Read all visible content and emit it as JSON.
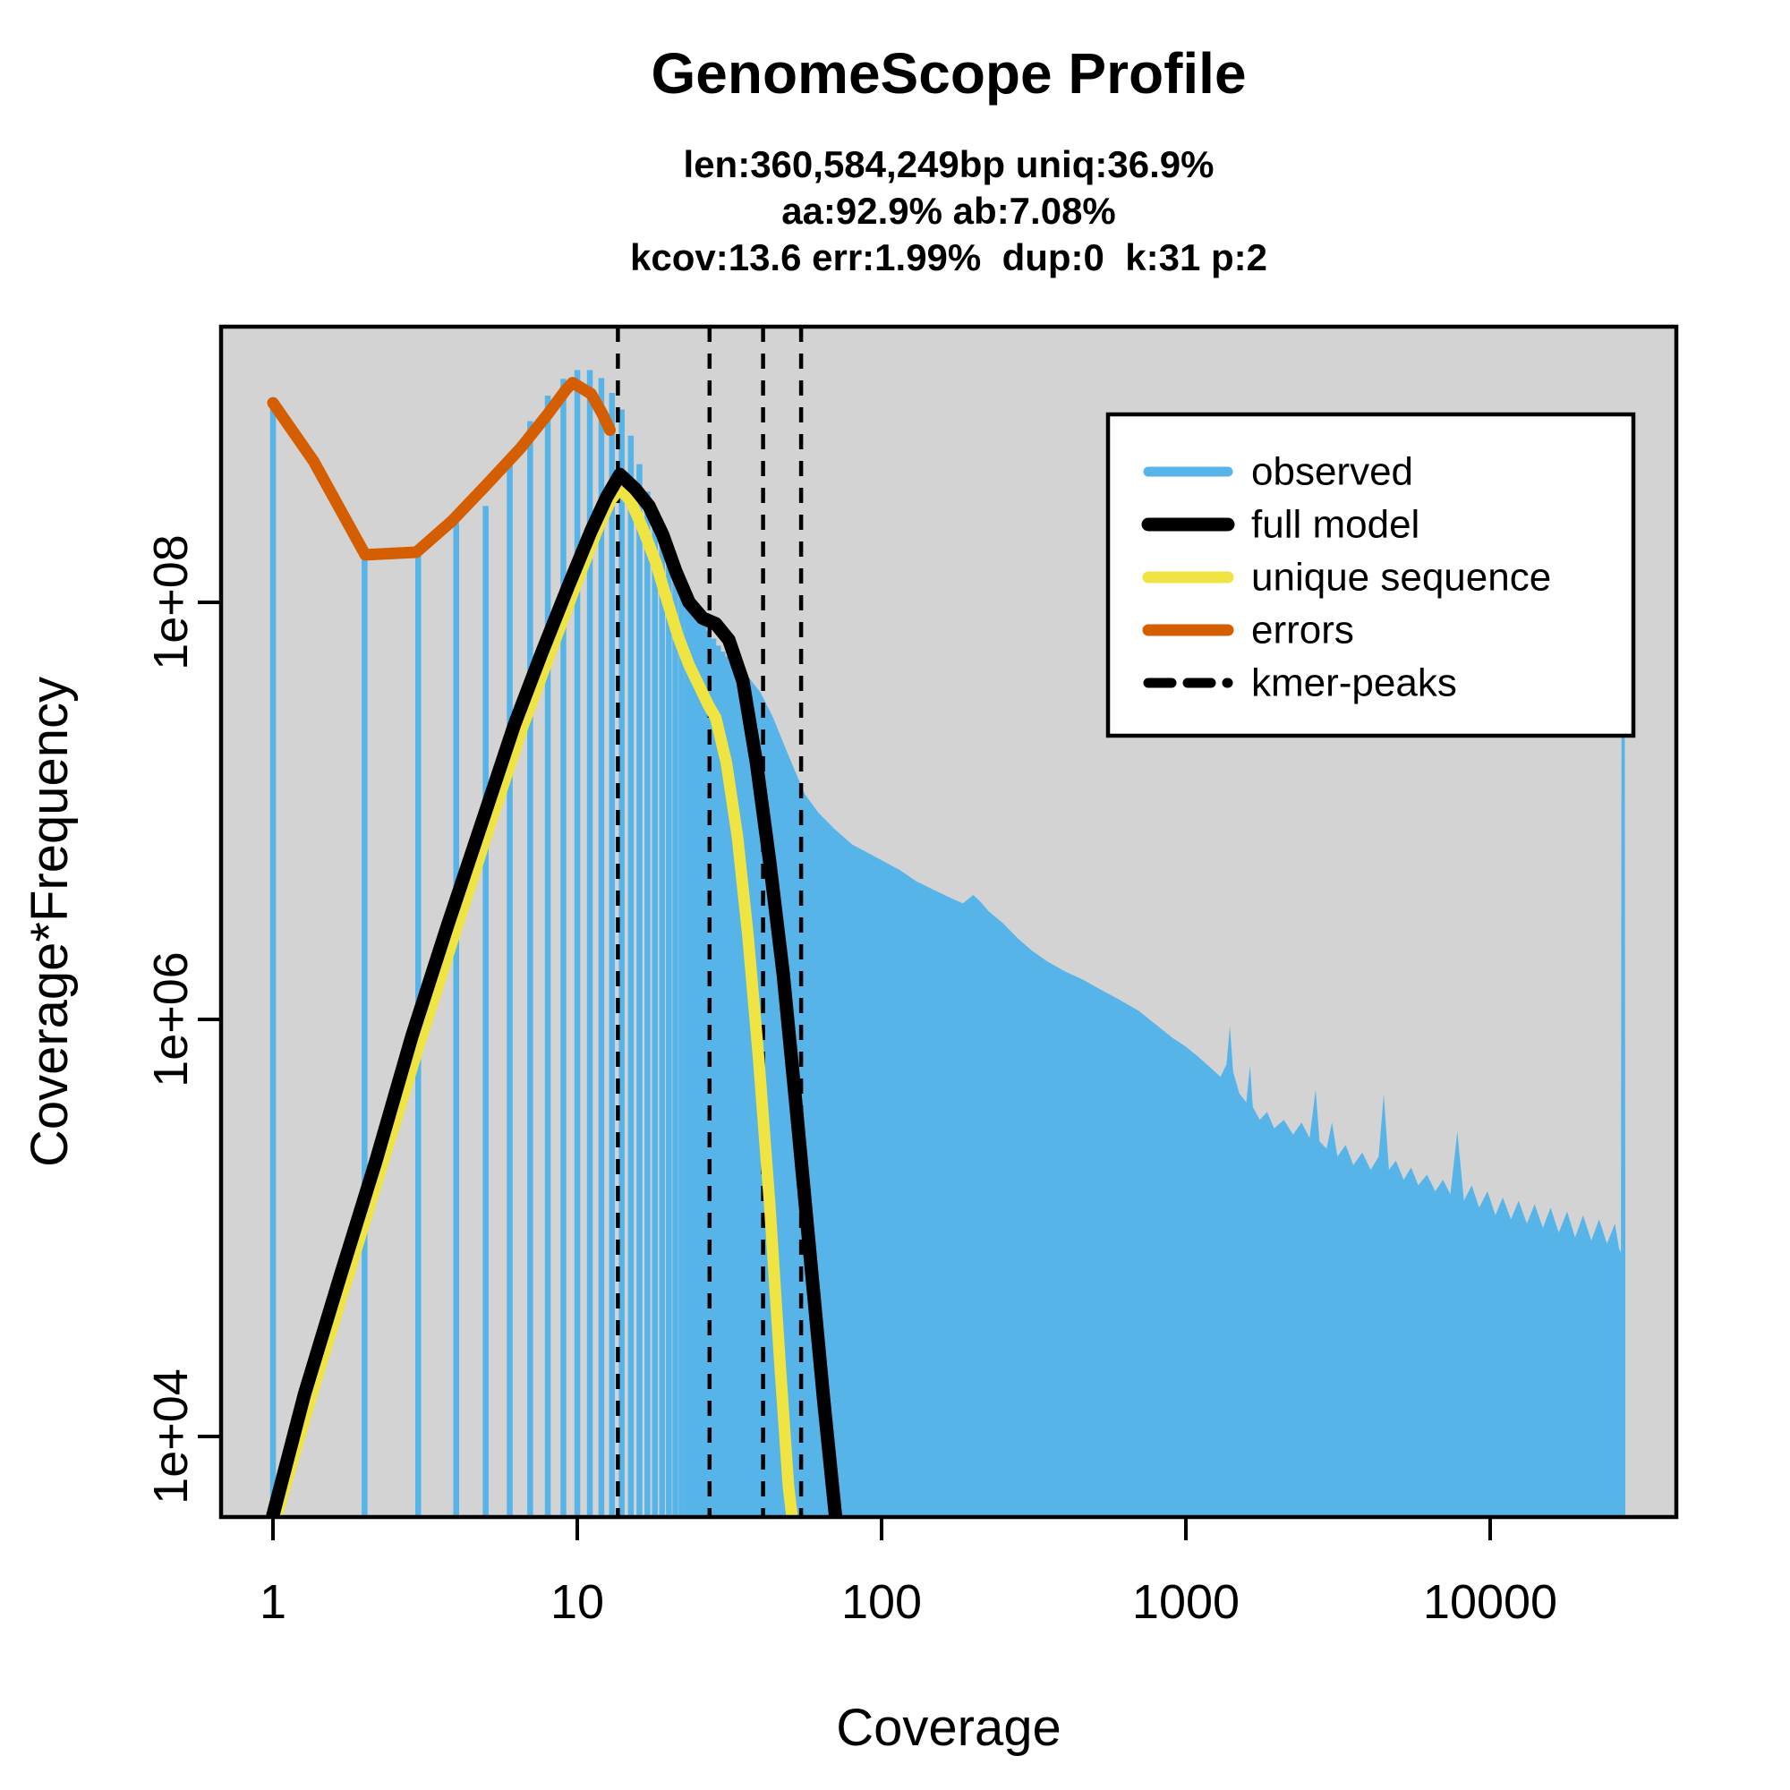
{
  "title": "GenomeScope Profile",
  "subtitle_lines": [
    "len:360,584,249bp uniq:36.9%",
    "aa:92.9% ab:7.08%",
    "kcov:13.6 err:1.99%  dup:0  k:31 p:2"
  ],
  "axes": {
    "x_label": "Coverage",
    "y_label": "Coverage*Frequency",
    "x_scale": "log",
    "y_scale": "log",
    "x_ticks": [
      {
        "value": 1,
        "label": "1"
      },
      {
        "value": 10,
        "label": "10"
      },
      {
        "value": 100,
        "label": "100"
      },
      {
        "value": 1000,
        "label": "1000"
      },
      {
        "value": 10000,
        "label": "10000"
      }
    ],
    "y_ticks": [
      {
        "value": 10000,
        "label": "1e+04"
      },
      {
        "value": 1000000,
        "label": "1e+06"
      },
      {
        "value": 100000000,
        "label": "1e+08"
      }
    ]
  },
  "legend": {
    "items": [
      {
        "label": "observed",
        "color": "#56B4E9",
        "style": "solid",
        "width": 11
      },
      {
        "label": "full model",
        "color": "#000000",
        "style": "solid",
        "width": 15
      },
      {
        "label": "unique sequence",
        "color": "#F0E442",
        "style": "solid",
        "width": 13
      },
      {
        "label": "errors",
        "color": "#D55E00",
        "style": "solid",
        "width": 13
      },
      {
        "label": "kmer-peaks",
        "color": "#000000",
        "style": "dashed",
        "width": 11
      }
    ]
  },
  "chart_data": {
    "type": "bar",
    "subtype": "kmer-spectrum-with-model-lines",
    "x_scale": "log",
    "y_scale": "log",
    "xlabel": "Coverage",
    "ylabel": "Coverage*Frequency",
    "x_domain": [
      0.67,
      41000
    ],
    "y_domain": [
      4100,
      2100000000
    ],
    "background": "#D3D3D3",
    "grid": false,
    "legend_position": "top-right",
    "colors": {
      "observed": "#56B4E9",
      "full_model": "#000000",
      "unique_sequence": "#F0E442",
      "errors": "#D55E00",
      "kmer_peaks": "#000000"
    },
    "kmer_peaks": [
      13.6,
      27.2,
      40.8,
      54.4
    ],
    "observed_bars": [
      [
        1,
        930000000
      ],
      [
        2,
        170000000
      ],
      [
        3,
        180000000
      ],
      [
        4,
        240000000
      ],
      [
        5,
        290000000
      ],
      [
        6,
        470000000
      ],
      [
        7,
        740000000
      ],
      [
        8,
        980000000
      ],
      [
        9,
        1180000000
      ],
      [
        10,
        1300000000
      ],
      [
        11,
        1300000000
      ],
      [
        12,
        1190000000
      ],
      [
        13,
        1010000000
      ],
      [
        14,
        840000000
      ],
      [
        15,
        630000000
      ],
      [
        16,
        460000000
      ],
      [
        17,
        340000000
      ],
      [
        18,
        260000000
      ],
      [
        19,
        210000000
      ],
      [
        20,
        172000000
      ],
      [
        21,
        145000000
      ],
      [
        22,
        125000000
      ],
      [
        23,
        109000000
      ],
      [
        24,
        97000000
      ],
      [
        25,
        88000000
      ],
      [
        26,
        80000000
      ],
      [
        27,
        73000000
      ],
      [
        28,
        67000000
      ],
      [
        29,
        62000000
      ],
      [
        30,
        58000000
      ],
      [
        31,
        55000000
      ],
      [
        32,
        52000000
      ]
    ],
    "observed_envelope": [
      [
        32,
        52000000
      ],
      [
        36,
        45000000
      ],
      [
        40,
        37000000
      ],
      [
        44,
        28000000
      ],
      [
        48,
        20500000
      ],
      [
        52,
        15500000
      ],
      [
        56,
        12000000
      ],
      [
        62,
        9800000
      ],
      [
        70,
        8200000
      ],
      [
        80,
        6900000
      ],
      [
        100,
        5800000
      ],
      [
        115,
        5200000
      ],
      [
        130,
        4600000
      ],
      [
        150,
        4150000
      ],
      [
        170,
        3800000
      ],
      [
        185,
        3600000
      ],
      [
        200,
        3950000
      ],
      [
        210,
        3700000
      ],
      [
        225,
        3300000
      ],
      [
        250,
        2900000
      ],
      [
        280,
        2450000
      ],
      [
        310,
        2150000
      ],
      [
        350,
        1900000
      ],
      [
        400,
        1700000
      ],
      [
        460,
        1550000
      ],
      [
        520,
        1400000
      ],
      [
        600,
        1250000
      ],
      [
        700,
        1100000
      ],
      [
        800,
        940000
      ],
      [
        900,
        820000
      ],
      [
        1000,
        740000
      ],
      [
        1100,
        660000
      ],
      [
        1200,
        590000
      ],
      [
        1300,
        530000
      ],
      [
        1360,
        610000
      ],
      [
        1395,
        930000
      ],
      [
        1430,
        560000
      ],
      [
        1500,
        440000
      ],
      [
        1580,
        400000
      ],
      [
        1625,
        600000
      ],
      [
        1660,
        380000
      ],
      [
        1750,
        330000
      ],
      [
        1850,
        360000
      ],
      [
        1950,
        300000
      ],
      [
        2100,
        330000
      ],
      [
        2250,
        280000
      ],
      [
        2400,
        320000
      ],
      [
        2550,
        270000
      ],
      [
        2670,
        460000
      ],
      [
        2750,
        260000
      ],
      [
        2900,
        240000
      ],
      [
        3020,
        320000
      ],
      [
        3150,
        220000
      ],
      [
        3350,
        250000
      ],
      [
        3550,
        200000
      ],
      [
        3800,
        230000
      ],
      [
        4050,
        190000
      ],
      [
        4300,
        220000
      ],
      [
        4470,
        440000
      ],
      [
        4650,
        190000
      ],
      [
        4900,
        210000
      ],
      [
        5200,
        170000
      ],
      [
        5500,
        195000
      ],
      [
        5800,
        160000
      ],
      [
        6200,
        180000
      ],
      [
        6600,
        150000
      ],
      [
        7000,
        170000
      ],
      [
        7400,
        145000
      ],
      [
        7800,
        290000
      ],
      [
        8200,
        135000
      ],
      [
        8700,
        160000
      ],
      [
        9200,
        125000
      ],
      [
        9800,
        150000
      ],
      [
        10400,
        115000
      ],
      [
        11000,
        140000
      ],
      [
        11700,
        110000
      ],
      [
        12400,
        135000
      ],
      [
        13200,
        105000
      ],
      [
        14000,
        130000
      ],
      [
        14900,
        100000
      ],
      [
        15800,
        125000
      ],
      [
        16800,
        95000
      ],
      [
        17900,
        120000
      ],
      [
        19000,
        90000
      ],
      [
        20200,
        115000
      ],
      [
        21500,
        87000
      ],
      [
        22800,
        110000
      ],
      [
        24200,
        84000
      ],
      [
        25700,
        105000
      ],
      [
        26500,
        80000
      ],
      [
        26900,
        76000
      ],
      [
        27000,
        23000000
      ],
      [
        27700,
        23000000
      ],
      [
        27800,
        76000
      ]
    ],
    "full_model": [
      [
        1.0,
        4200
      ],
      [
        1.27,
        16000
      ],
      [
        1.66,
        58000
      ],
      [
        2.18,
        210000
      ],
      [
        2.86,
        830000
      ],
      [
        3.74,
        2800000
      ],
      [
        4.91,
        9200000
      ],
      [
        6.22,
        26000000
      ],
      [
        7.63,
        57000000
      ],
      [
        9.35,
        120000000
      ],
      [
        11.1,
        220000000
      ],
      [
        12.5,
        320000000
      ],
      [
        13.8,
        410000000
      ],
      [
        15.5,
        350000000
      ],
      [
        17.2,
        290000000
      ],
      [
        19.1,
        210000000
      ],
      [
        21.1,
        140000000
      ],
      [
        23.3,
        100000000
      ],
      [
        25.8,
        84000000
      ],
      [
        28.5,
        79000000
      ],
      [
        31.5,
        66000000
      ],
      [
        35.0,
        42000000
      ],
      [
        38.8,
        17000000
      ],
      [
        42.9,
        5700000
      ],
      [
        47.5,
        1650000
      ],
      [
        52.6,
        360000
      ],
      [
        58.2,
        74000
      ],
      [
        64.5,
        15000
      ],
      [
        70.5,
        4200
      ]
    ],
    "unique_sequence": [
      [
        1.03,
        4200
      ],
      [
        1.36,
        17000
      ],
      [
        1.78,
        61000
      ],
      [
        2.33,
        220000
      ],
      [
        3.05,
        790000
      ],
      [
        4.0,
        2700000
      ],
      [
        5.25,
        9200000
      ],
      [
        6.66,
        26000000
      ],
      [
        8.15,
        57000000
      ],
      [
        10.0,
        126000000
      ],
      [
        11.7,
        227000000
      ],
      [
        12.9,
        310000000
      ],
      [
        13.8,
        350000000
      ],
      [
        15.0,
        305000000
      ],
      [
        16.4,
        227000000
      ],
      [
        18.1,
        156000000
      ],
      [
        19.7,
        103000000
      ],
      [
        21.5,
        68000000
      ],
      [
        23.3,
        50000000
      ],
      [
        25.3,
        39000000
      ],
      [
        27.0,
        32000000
      ],
      [
        28.5,
        28000000
      ],
      [
        30.9,
        17000000
      ],
      [
        33.6,
        7500000
      ],
      [
        36.4,
        2500000
      ],
      [
        39.5,
        640000
      ],
      [
        42.9,
        130000
      ],
      [
        46.4,
        22000
      ],
      [
        49.4,
        5800
      ],
      [
        50.7,
        4200
      ]
    ],
    "errors": [
      [
        1.0,
        905000000
      ],
      [
        1.36,
        475000000
      ],
      [
        2.01,
        169000000
      ],
      [
        2.96,
        174000000
      ],
      [
        3.87,
        245000000
      ],
      [
        5.08,
        372000000
      ],
      [
        6.52,
        550000000
      ],
      [
        8.0,
        800000000
      ],
      [
        9.15,
        1040000000
      ],
      [
        9.65,
        1130000000
      ],
      [
        11.1,
        1000000000
      ],
      [
        12.1,
        800000000
      ],
      [
        12.8,
        670000000
      ]
    ]
  }
}
